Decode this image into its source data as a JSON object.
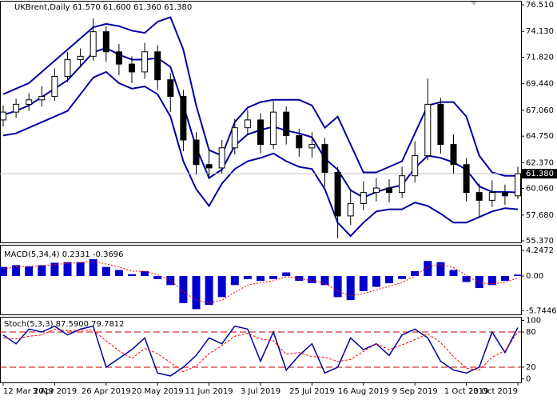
{
  "chart_data": [
    {
      "type": "candlestick",
      "title": "UKBrent,Daily  61.570 61.600 61.360 61.380",
      "open": [
        66.2,
        66.9,
        67.6,
        68.0,
        68.3,
        70.1,
        71.6,
        71.9,
        74.1,
        72.3,
        71.2,
        70.5,
        72.3,
        69.8,
        68.3,
        64.4,
        62.2,
        61.9,
        63.7,
        65.5,
        66.2,
        64.0,
        66.9,
        64.8,
        63.7,
        64.0,
        61.5,
        57.6,
        58.7,
        59.7,
        60.1,
        59.7,
        61.2,
        63.0,
        67.6,
        64.0,
        62.2,
        59.7,
        59.0,
        59.7,
        59.4
      ],
      "high": [
        67.5,
        68.1,
        68.6,
        69.2,
        70.8,
        72.3,
        72.6,
        75.3,
        74.6,
        73.0,
        71.9,
        73.1,
        72.9,
        70.4,
        68.9,
        65.1,
        63.6,
        64.4,
        66.3,
        67.1,
        66.8,
        67.9,
        67.4,
        65.4,
        65.1,
        64.6,
        62.0,
        59.9,
        60.7,
        61.0,
        60.9,
        62.0,
        64.3,
        69.9,
        68.2,
        64.9,
        62.8,
        60.5,
        60.8,
        60.4,
        62.0
      ],
      "low": [
        65.6,
        66.4,
        67.0,
        67.4,
        67.9,
        69.6,
        70.9,
        71.5,
        71.4,
        70.2,
        69.5,
        69.9,
        68.9,
        66.9,
        63.4,
        61.3,
        60.9,
        61.4,
        63.1,
        64.9,
        63.2,
        63.6,
        64.0,
        62.9,
        62.8,
        60.2,
        55.6,
        56.8,
        58.1,
        58.9,
        58.8,
        59.2,
        60.6,
        62.6,
        63.2,
        61.4,
        58.9,
        57.5,
        58.4,
        58.6,
        59.1
      ],
      "close": [
        66.9,
        67.6,
        68.0,
        68.3,
        70.1,
        71.6,
        71.9,
        74.1,
        72.3,
        71.2,
        70.5,
        72.3,
        69.8,
        68.3,
        64.4,
        62.2,
        61.9,
        63.7,
        65.5,
        66.2,
        64.0,
        66.9,
        64.8,
        63.7,
        64.0,
        61.5,
        57.6,
        58.7,
        59.7,
        60.1,
        59.7,
        61.2,
        63.0,
        67.6,
        64.0,
        62.2,
        59.7,
        59.0,
        59.7,
        59.4,
        61.38
      ],
      "series": [
        {
          "color": "#0000a0",
          "values": [
            68.5,
            69.0,
            69.5,
            70.5,
            71.5,
            72.5,
            73.5,
            74.5,
            74.8,
            74.6,
            74.2,
            74.0,
            75.0,
            75.4,
            72.5,
            67.5,
            63.5,
            63.0,
            66.0,
            67.3,
            67.8,
            68.0,
            68.0,
            68.0,
            67.5,
            65.5,
            66.5,
            64.0,
            61.5,
            61.5,
            62.0,
            62.5,
            65.0,
            67.5,
            67.8,
            67.8,
            66.5,
            63.0,
            61.5,
            61.2,
            61.2
          ]
        },
        {
          "color": "#0000a0",
          "values": [
            66.65,
            67.0,
            67.5,
            68.25,
            69.0,
            69.75,
            71.0,
            72.25,
            72.65,
            72.05,
            71.6,
            71.6,
            71.75,
            70.95,
            67.5,
            63.75,
            61.0,
            61.75,
            63.9,
            64.9,
            65.3,
            65.6,
            65.25,
            65.0,
            64.65,
            62.75,
            61.75,
            59.9,
            59.25,
            59.75,
            60.1,
            60.35,
            61.9,
            63.0,
            62.8,
            62.4,
            61.75,
            60.25,
            59.75,
            59.75,
            59.7
          ]
        },
        {
          "color": "#0000a0",
          "values": [
            64.8,
            65.0,
            65.5,
            66.0,
            66.5,
            67.0,
            68.5,
            70.0,
            70.5,
            69.5,
            69.0,
            69.2,
            68.5,
            66.5,
            62.5,
            60.0,
            58.5,
            60.5,
            61.8,
            62.5,
            62.8,
            63.2,
            62.5,
            62.0,
            61.8,
            60.0,
            57.0,
            55.8,
            57.0,
            58.0,
            58.2,
            58.2,
            58.8,
            58.5,
            57.8,
            57.0,
            57.0,
            57.5,
            58.0,
            58.3,
            58.2
          ]
        }
      ],
      "ylim": [
        55.23,
        76.87
      ],
      "yticks": [
        {
          "value": 76.51,
          "label": "76.510"
        },
        {
          "value": 74.13,
          "label": "74.130"
        },
        {
          "value": 71.82,
          "label": "71.820"
        },
        {
          "value": 69.44,
          "label": "69.440"
        },
        {
          "value": 67.06,
          "label": "67.060"
        },
        {
          "value": 64.75,
          "label": "64.750"
        },
        {
          "value": 62.37,
          "label": "62.370"
        },
        {
          "value": 60.06,
          "label": "60.060"
        },
        {
          "value": 57.68,
          "label": "57.680"
        },
        {
          "value": 55.37,
          "label": "55.370"
        }
      ],
      "price_label": {
        "value": 61.38,
        "label": "61.380"
      }
    },
    {
      "type": "macd",
      "title": "MACD(5,34,4) 0.2331 -0.3696",
      "series": [
        {
          "color": "#0000cc",
          "values": [
            1.5,
            1.8,
            1.6,
            1.8,
            2.2,
            2.3,
            2.3,
            2.8,
            1.5,
            1.0,
            0.3,
            0.8,
            -0.5,
            -1.5,
            -4.5,
            -5.5,
            -4.8,
            -3.5,
            -1.5,
            -0.5,
            -0.8,
            -0.5,
            0.6,
            -0.8,
            -1.2,
            -1.5,
            -3.5,
            -4.0,
            -2.5,
            -1.8,
            -1.2,
            -0.5,
            0.8,
            2.5,
            2.3,
            1.0,
            -1.0,
            -2.0,
            -1.5,
            -0.8,
            0.2331
          ]
        },
        {
          "color": "#ff0000",
          "values": [
            1.2,
            1.5,
            1.6,
            1.7,
            1.9,
            2.1,
            2.2,
            2.5,
            2.0,
            1.5,
            0.8,
            0.8,
            0.2,
            -0.7,
            -2.6,
            -4.0,
            -4.5,
            -4.0,
            -2.7,
            -1.5,
            -1.1,
            -0.8,
            -0.1,
            -0.4,
            -0.8,
            -1.2,
            -2.5,
            -3.3,
            -2.9,
            -2.3,
            -1.7,
            -1.1,
            0.0,
            1.5,
            1.9,
            1.4,
            0.1,
            -1.1,
            -1.3,
            -1.0,
            -0.3696
          ]
        }
      ],
      "ylim": [
        -6.37,
        5.18
      ],
      "yticks": [
        4.2472,
        {
          "value": 0,
          "label": "0.00"
        },
        -5.7446
      ]
    },
    {
      "type": "stochastic",
      "title": "Stoch(5,3,3) 87.5900 79.7812",
      "categories": [
        "12 Mar 2019",
        null,
        null,
        null,
        "3 Apr 2019",
        null,
        null,
        null,
        "26 Apr 2019",
        null,
        null,
        null,
        "20 May 2019",
        null,
        null,
        null,
        "11 Jun 2019",
        null,
        null,
        null,
        "3 Jul 2019",
        null,
        null,
        null,
        "25 Jul 2019",
        null,
        null,
        null,
        "16 Aug 2019",
        null,
        null,
        null,
        "9 Sep 2019",
        null,
        null,
        null,
        "1 Oct 2019",
        null,
        null,
        null,
        "23 Oct 2019"
      ],
      "series": [
        {
          "color": "#0000a0",
          "values": [
            75,
            60,
            85,
            80,
            90,
            75,
            85,
            90,
            20,
            35,
            50,
            70,
            10,
            5,
            20,
            40,
            70,
            60,
            90,
            85,
            30,
            80,
            15,
            40,
            60,
            10,
            20,
            70,
            50,
            60,
            40,
            75,
            85,
            70,
            30,
            15,
            10,
            20,
            80,
            45,
            87.59
          ]
        },
        {
          "color": "#ff0000",
          "values": [
            70,
            68,
            73,
            75,
            85,
            82,
            83,
            83,
            65,
            48,
            35,
            52,
            43,
            28,
            12,
            22,
            43,
            57,
            73,
            78,
            68,
            65,
            42,
            45,
            38,
            37,
            30,
            33,
            47,
            60,
            50,
            58,
            67,
            77,
            62,
            38,
            18,
            15,
            37,
            48,
            79.7812
          ]
        }
      ],
      "levels": [
        80,
        20
      ],
      "level_color": "#c00000",
      "ylim": [
        -6,
        106
      ],
      "yticks": [
        100,
        80,
        20,
        0
      ]
    }
  ]
}
